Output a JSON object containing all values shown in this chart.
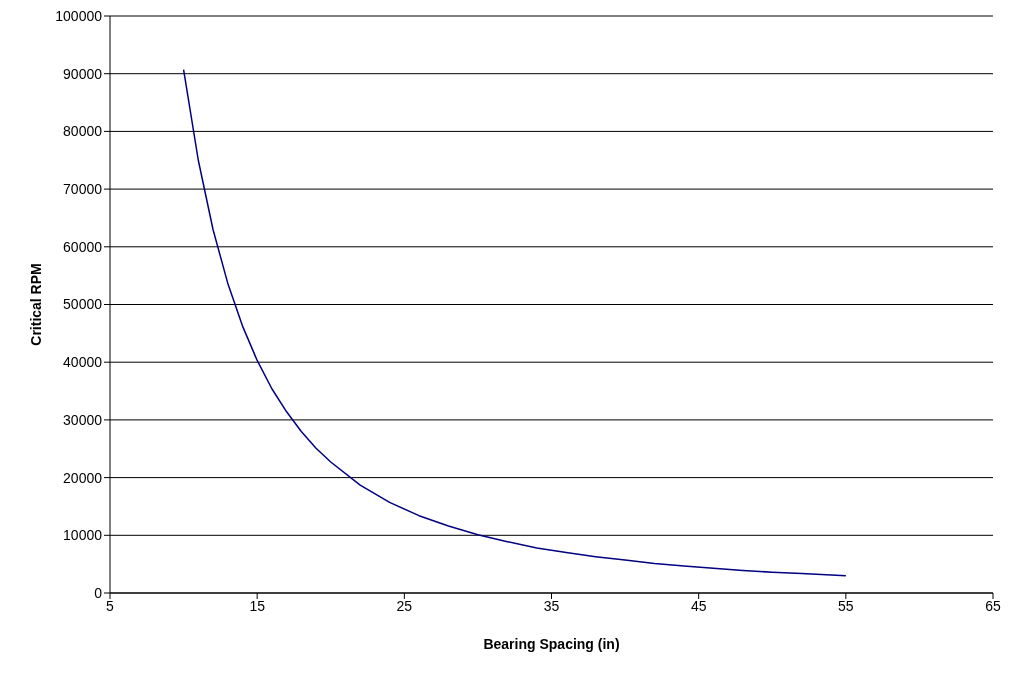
{
  "chart_data": {
    "type": "line",
    "xlabel": "Bearing Spacing (in)",
    "ylabel": "Critical RPM",
    "x": [
      10,
      11,
      12,
      13,
      14,
      15,
      16,
      17,
      18,
      19,
      20,
      22,
      24,
      26,
      28,
      30,
      32,
      34,
      36,
      38,
      40,
      42,
      44,
      46,
      48,
      50,
      52,
      55
    ],
    "series": [
      {
        "color": "#000080",
        "values": [
          90700,
          75000,
          63000,
          53700,
          46300,
          40300,
          35400,
          31400,
          28000,
          25100,
          22700,
          18700,
          15700,
          13400,
          11600,
          10100,
          8900,
          7800,
          7000,
          6300,
          5700,
          5100,
          4700,
          4300,
          3900,
          3600,
          3400,
          3000
        ]
      }
    ],
    "xlim": [
      5,
      65
    ],
    "xticks": [
      5,
      15,
      25,
      35,
      45,
      55,
      65
    ],
    "ylim": [
      0,
      100000
    ],
    "yticks": [
      0,
      10000,
      20000,
      30000,
      40000,
      50000,
      60000,
      70000,
      80000,
      90000,
      100000
    ],
    "grid": "y",
    "legend": false,
    "marker": "none",
    "line_style": "solid"
  }
}
